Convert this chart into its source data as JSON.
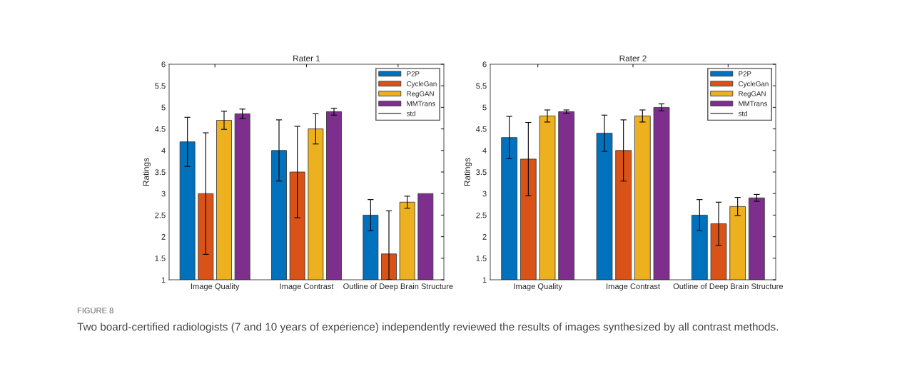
{
  "chart_data": [
    {
      "type": "bar",
      "title": "Rater 1",
      "ylabel": "Ratings",
      "categories": [
        "Image Quality",
        "Image Contrast",
        "Outline of Deep Brain Structure"
      ],
      "ylim": [
        1,
        6
      ],
      "yticks": [
        1,
        1.5,
        2,
        2.5,
        3,
        3.5,
        4,
        4.5,
        5,
        5.5,
        6
      ],
      "legend": "top right",
      "grid": false,
      "series": [
        {
          "name": "P2P",
          "color": "#0072bd",
          "values": [
            4.2,
            4.0,
            2.5
          ],
          "errors": [
            0.57,
            0.71,
            0.36
          ]
        },
        {
          "name": "CycleGan",
          "color": "#d95319",
          "values": [
            3.0,
            3.5,
            1.6
          ],
          "errors": [
            1.41,
            1.06,
            [
              1,
              2.6
            ]
          ]
        },
        {
          "name": "RegGAN",
          "color": "#edb120",
          "values": [
            4.7,
            4.5,
            2.8
          ],
          "errors": [
            0.21,
            0.35,
            0.14
          ]
        },
        {
          "name": "MMTrans",
          "color": "#7e2f8e",
          "values": [
            4.85,
            4.9,
            3.0
          ],
          "errors": [
            0.11,
            0.08,
            null
          ]
        }
      ],
      "annotations": [
        "std",
        "FIGURE 8",
        "Two board-certified radiologists (7 and 10 years of experience) independently reviewed the results of images synthesized by all contrast methods."
      ]
    },
    {
      "type": "bar",
      "title": "Rater 2",
      "ylabel": "Ratings",
      "categories": [
        "Image Quality",
        "Image Contrast",
        "Outline of Deep Brain Structure"
      ],
      "ylim": [
        1,
        6
      ],
      "yticks": [
        1,
        1.5,
        2,
        2.5,
        3,
        3.5,
        4,
        4.5,
        5,
        5.5,
        6
      ],
      "legend": "top right",
      "grid": false,
      "series": [
        {
          "name": "P2P",
          "color": "#0072bd",
          "values": [
            4.3,
            4.4,
            2.5
          ],
          "errors": [
            0.49,
            0.42,
            0.36
          ]
        },
        {
          "name": "CycleGan",
          "color": "#d95319",
          "values": [
            3.8,
            4.0,
            2.3
          ],
          "errors": [
            0.85,
            0.71,
            0.5
          ]
        },
        {
          "name": "RegGAN",
          "color": "#edb120",
          "values": [
            4.8,
            4.8,
            2.7
          ],
          "errors": [
            0.14,
            0.14,
            0.21
          ]
        },
        {
          "name": "MMTrans",
          "color": "#7e2f8e",
          "values": [
            4.9,
            5.0,
            2.9
          ],
          "errors": [
            0.04,
            0.08,
            0.08
          ]
        }
      ],
      "annotations": [
        "std"
      ]
    }
  ]
}
